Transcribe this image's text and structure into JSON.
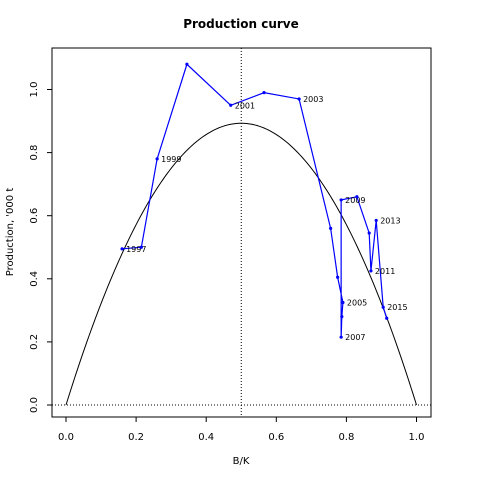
{
  "chart_data": {
    "type": "line",
    "title": "Production curve",
    "xlabel": "B/K",
    "ylabel": "Production, '000 t",
    "xlim": [
      0,
      1.0
    ],
    "ylim": [
      0,
      1.1
    ],
    "x_ticks": [
      "0.0",
      "0.2",
      "0.4",
      "0.6",
      "0.8",
      "1.0"
    ],
    "y_ticks": [
      "0.0",
      "0.2",
      "0.4",
      "0.6",
      "0.8",
      "1.0"
    ],
    "reference_lines": {
      "vertical_x": 0.5,
      "horizontal_y": 0.0
    },
    "curve": {
      "type": "parabola",
      "r_over_4_peak": 0.893,
      "x_range": [
        0,
        1
      ]
    },
    "series": [
      {
        "color": "#0000ff",
        "points": [
          {
            "x": 0.16,
            "y": 0.495,
            "label": "1997"
          },
          {
            "x": 0.215,
            "y": 0.5,
            "label": ""
          },
          {
            "x": 0.26,
            "y": 0.78,
            "label": "1999"
          },
          {
            "x": 0.345,
            "y": 1.08,
            "label": ""
          },
          {
            "x": 0.47,
            "y": 0.95,
            "label": "2001"
          },
          {
            "x": 0.565,
            "y": 0.99,
            "label": ""
          },
          {
            "x": 0.665,
            "y": 0.97,
            "label": "2003"
          },
          {
            "x": 0.755,
            "y": 0.56,
            "label": ""
          },
          {
            "x": 0.775,
            "y": 0.405,
            "label": ""
          },
          {
            "x": 0.79,
            "y": 0.325,
            "label": "2005"
          },
          {
            "x": 0.787,
            "y": 0.28,
            "label": ""
          },
          {
            "x": 0.785,
            "y": 0.215,
            "label": "2007"
          },
          {
            "x": 0.785,
            "y": 0.65,
            "label": "2009"
          },
          {
            "x": 0.83,
            "y": 0.66,
            "label": ""
          },
          {
            "x": 0.865,
            "y": 0.545,
            "label": ""
          },
          {
            "x": 0.87,
            "y": 0.425,
            "label": "2011"
          },
          {
            "x": 0.885,
            "y": 0.585,
            "label": "2013"
          },
          {
            "x": 0.905,
            "y": 0.31,
            "label": "2015"
          },
          {
            "x": 0.915,
            "y": 0.275,
            "label": ""
          }
        ]
      }
    ]
  }
}
